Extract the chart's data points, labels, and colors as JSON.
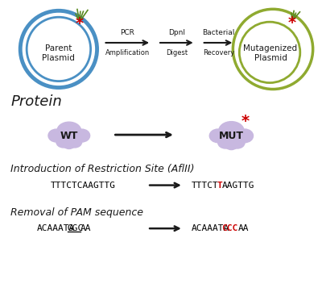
{
  "bg_color": "#ffffff",
  "blue_circle_color": "#4a90c4",
  "green_circle_color": "#8faa30",
  "cloud_color": "#c8b8e0",
  "red_star_color": "#cc0000",
  "green_needle_color": "#5a8a20",
  "arrow_color": "#1a1a1a",
  "text_color": "#1a1a1a",
  "red_text_color": "#cc0000",
  "parent_label": "Parent\nPlasmid",
  "mutagen_label": "Mutagenized\nPlasmid",
  "step1_top": "PCR",
  "step1_bot": "Amplification",
  "step2_top": "DpnI",
  "step2_bot": "Digest",
  "step3_top": "Bacterial",
  "step3_bot": "Recovery",
  "protein_label": "Protein",
  "wt_label": "WT",
  "mut_label": "MUT",
  "section2_title": "Introduction of Restriction Site (AflII)",
  "section3_title": "Removal of PAM sequence"
}
